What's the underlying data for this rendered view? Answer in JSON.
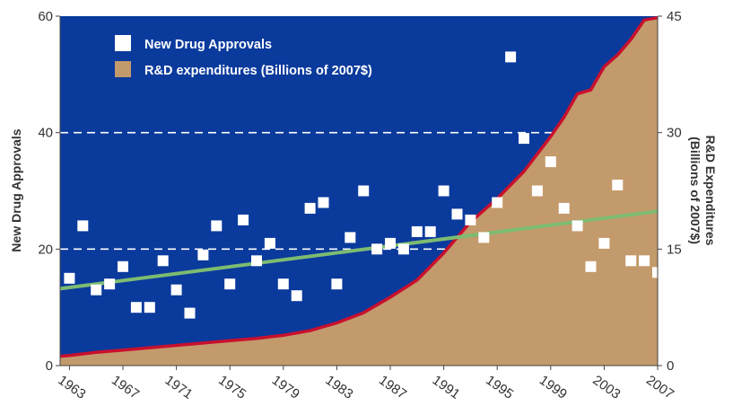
{
  "colors": {
    "background": "#0a3a9c",
    "rd_fill": "#c39a6b",
    "rd_line": "#c8102e",
    "trend": "#7dbb72",
    "approvals": "#ffffff",
    "gridline": "#ffffff"
  },
  "chart_data": {
    "type": "scatter",
    "grid": "dashed horizontal lines at 20 and 40",
    "legend_position": "top-left",
    "legend": {
      "approvals_label": "New Drug Approvals",
      "rd_label": "R&D expenditures (Billions of 2007$)"
    },
    "ylabel_left": "New Drug Approvals",
    "ylabel_right_line1": "R&D Expenditures",
    "ylabel_right_line2": "(Billions of 2007$)",
    "xlim": [
      1962.3,
      2007
    ],
    "ylim_left": [
      0,
      60
    ],
    "ylim_right": [
      0,
      45
    ],
    "x_ticks": [
      "1963",
      "1967",
      "1971",
      "1975",
      "1979",
      "1983",
      "1987",
      "1991",
      "1995",
      "1999",
      "2003",
      "2007"
    ],
    "left_ticks": [
      "0",
      "20",
      "40",
      "60"
    ],
    "right_ticks": [
      "0",
      "15",
      "30",
      "45"
    ],
    "series": [
      {
        "name": "New Drug Approvals",
        "type": "scatter",
        "axis": "left",
        "x": [
          1963,
          1964,
          1965,
          1966,
          1967,
          1968,
          1969,
          1970,
          1971,
          1972,
          1973,
          1974,
          1975,
          1976,
          1977,
          1978,
          1979,
          1980,
          1981,
          1982,
          1983,
          1984,
          1985,
          1986,
          1987,
          1988,
          1989,
          1990,
          1991,
          1992,
          1993,
          1994,
          1995,
          1996,
          1997,
          1998,
          1999,
          2000,
          2001,
          2002,
          2003,
          2004,
          2005,
          2006,
          2007
        ],
        "values": [
          15,
          24,
          13,
          14,
          17,
          10,
          10,
          18,
          13,
          9,
          19,
          24,
          14,
          25,
          18,
          21,
          14,
          12,
          27,
          28,
          14,
          22,
          30,
          20,
          21,
          20,
          23,
          23,
          30,
          26,
          25,
          22,
          28,
          53,
          39,
          30,
          35,
          27,
          24,
          17,
          21,
          31,
          18,
          18,
          16
        ]
      },
      {
        "name": "R&D expenditures (Billions of 2007$)",
        "type": "area",
        "axis": "right",
        "x": [
          1962.3,
          1963,
          1965,
          1967,
          1969,
          1971,
          1973,
          1975,
          1977,
          1979,
          1981,
          1983,
          1985,
          1987,
          1989,
          1991,
          1993,
          1995,
          1997,
          1999,
          2000,
          2001,
          2002,
          2003,
          2004,
          2005,
          2006,
          2007
        ],
        "values": [
          1.2,
          1.3,
          1.7,
          2.0,
          2.3,
          2.6,
          2.9,
          3.2,
          3.5,
          3.9,
          4.5,
          5.5,
          6.8,
          8.8,
          11.0,
          14.5,
          18.5,
          21.5,
          25.0,
          29.5,
          32.0,
          35.0,
          35.5,
          38.5,
          40.0,
          42.0,
          44.5,
          44.8
        ]
      },
      {
        "name": "Trend",
        "type": "line",
        "axis": "left",
        "x": [
          1962.3,
          2007
        ],
        "values": [
          13.2,
          26.5
        ]
      }
    ]
  }
}
